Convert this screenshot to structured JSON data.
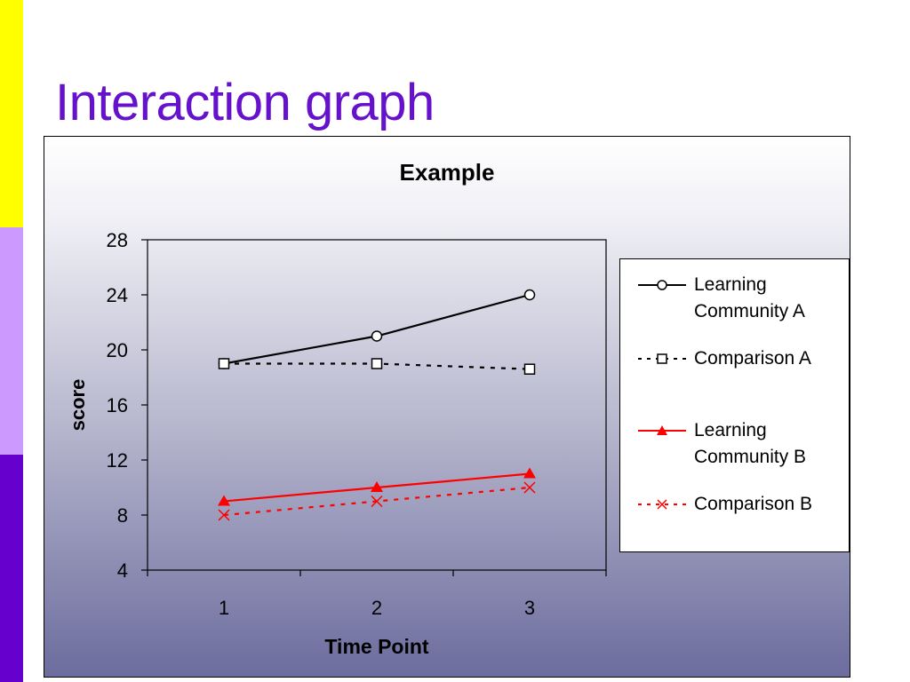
{
  "slide": {
    "title": "Interaction graph",
    "accent_colors": [
      "#ffff00",
      "#cc99ff",
      "#6600cc"
    ],
    "title_color": "#6611cc"
  },
  "chart_data": {
    "type": "line",
    "title": "Example",
    "xlabel": "Time Point",
    "ylabel": "score",
    "categories": [
      "1",
      "2",
      "3"
    ],
    "ylim": [
      4,
      28
    ],
    "yticks": [
      "4",
      "8",
      "12",
      "16",
      "20",
      "24",
      "28"
    ],
    "legend_position": "right",
    "series": [
      {
        "name": "Learning Community A",
        "values": [
          19,
          21,
          24
        ],
        "color": "#000000",
        "dash": "solid",
        "marker": "circle"
      },
      {
        "name": "Comparison A",
        "values": [
          19,
          19,
          18.6
        ],
        "color": "#000000",
        "dash": "dashed",
        "marker": "square"
      },
      {
        "name": "Learning Community B",
        "values": [
          9,
          10,
          11
        ],
        "color": "#ff0000",
        "dash": "solid",
        "marker": "triangle"
      },
      {
        "name": "Comparison B",
        "values": [
          8,
          9,
          10
        ],
        "color": "#ff0000",
        "dash": "dashed",
        "marker": "x"
      }
    ]
  }
}
